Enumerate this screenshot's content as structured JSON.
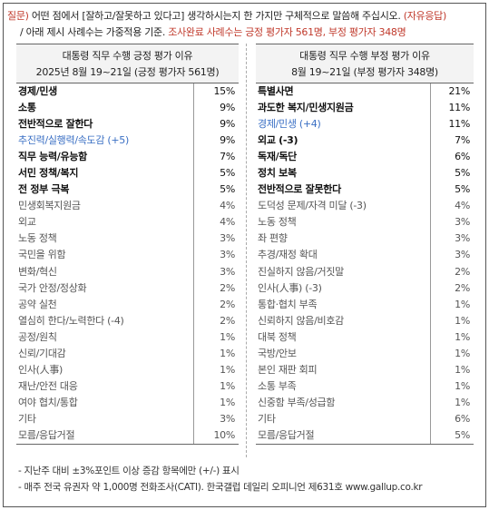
{
  "question": {
    "prefix": "질문)",
    "text1": " 어떤 점에서 [잘하고/잘못하고 있다고] 생각하시는지 한 가지만 구체적으로 말씀해 주십시오. ",
    "open_end": "(자유응답)",
    "text2": "/ 아래 제시 사례수는 가중적용 기준. ",
    "sample_note": "조사완료 사례수는 긍정 평가자 561명, 부정 평가자 348명"
  },
  "positive": {
    "title": "대통령 직무 수행 긍정 평가 이유",
    "subtitle": "2025년 8월 19~21일 (긍정 평가자 561명)",
    "rows": [
      {
        "label": "경제/민생",
        "value": "15%",
        "style": "bold"
      },
      {
        "label": "소통",
        "value": "9%",
        "style": "bold"
      },
      {
        "label": "전반적으로 잘한다",
        "value": "9%",
        "style": "bold"
      },
      {
        "label": "추진력/실행력/속도감 (+5)",
        "value": "9%",
        "style": "blue"
      },
      {
        "label": "직무 능력/유능함",
        "value": "7%",
        "style": "bold"
      },
      {
        "label": "서민 정책/복지",
        "value": "5%",
        "style": "bold"
      },
      {
        "label": "전 정부 극복",
        "value": "5%",
        "style": "bold"
      },
      {
        "label": "민생회복지원금",
        "value": "4%",
        "style": "normal"
      },
      {
        "label": "외교",
        "value": "4%",
        "style": "normal"
      },
      {
        "label": "노동 정책",
        "value": "3%",
        "style": "normal"
      },
      {
        "label": "국민을 위함",
        "value": "3%",
        "style": "normal"
      },
      {
        "label": "변화/혁신",
        "value": "3%",
        "style": "normal"
      },
      {
        "label": "국가 안정/정상화",
        "value": "2%",
        "style": "normal"
      },
      {
        "label": "공약 실천",
        "value": "2%",
        "style": "normal"
      },
      {
        "label": "열심히 한다/노력한다 (-4)",
        "value": "2%",
        "style": "normal"
      },
      {
        "label": "공정/원칙",
        "value": "1%",
        "style": "normal"
      },
      {
        "label": "신뢰/기대감",
        "value": "1%",
        "style": "normal"
      },
      {
        "label": "인사(人事)",
        "value": "1%",
        "style": "normal"
      },
      {
        "label": "재난/안전 대응",
        "value": "1%",
        "style": "normal"
      },
      {
        "label": "여야 협치/통합",
        "value": "1%",
        "style": "normal"
      },
      {
        "label": "기타",
        "value": "3%",
        "style": "normal"
      },
      {
        "label": "모름/응답거절",
        "value": "10%",
        "style": "normal"
      }
    ]
  },
  "negative": {
    "title": "대통령 직무 수행 부정 평가 이유",
    "subtitle": "8월 19~21일 (부정 평가자 348명)",
    "rows": [
      {
        "label": "특별사면",
        "value": "21%",
        "style": "bold"
      },
      {
        "label": "과도한 복지/민생지원금",
        "value": "11%",
        "style": "bold"
      },
      {
        "label": "경제/민생 (+4)",
        "value": "11%",
        "style": "blue"
      },
      {
        "label": "외교 (-3)",
        "value": "7%",
        "style": "bold"
      },
      {
        "label": "독재/독단",
        "value": "6%",
        "style": "bold"
      },
      {
        "label": "정치 보복",
        "value": "5%",
        "style": "bold"
      },
      {
        "label": "전반적으로 잘못한다",
        "value": "5%",
        "style": "bold"
      },
      {
        "label": "도덕성 문제/자격 미달 (-3)",
        "value": "4%",
        "style": "normal"
      },
      {
        "label": "노동 정책",
        "value": "3%",
        "style": "normal"
      },
      {
        "label": "좌 편향",
        "value": "3%",
        "style": "normal"
      },
      {
        "label": "추경/재정 확대",
        "value": "3%",
        "style": "normal"
      },
      {
        "label": "진실하지 않음/거짓말",
        "value": "2%",
        "style": "normal"
      },
      {
        "label": "인사(人事) (-3)",
        "value": "2%",
        "style": "normal"
      },
      {
        "label": "통합·협치 부족",
        "value": "1%",
        "style": "normal"
      },
      {
        "label": "신뢰하지 않음/비호감",
        "value": "1%",
        "style": "normal"
      },
      {
        "label": "대북 정책",
        "value": "1%",
        "style": "normal"
      },
      {
        "label": "국방/안보",
        "value": "1%",
        "style": "normal"
      },
      {
        "label": "본인 재판 회피",
        "value": "1%",
        "style": "normal"
      },
      {
        "label": "소통 부족",
        "value": "1%",
        "style": "normal"
      },
      {
        "label": "신중함 부족/성급함",
        "value": "1%",
        "style": "normal"
      },
      {
        "label": "기타",
        "value": "6%",
        "style": "normal"
      },
      {
        "label": "모름/응답거절",
        "value": "5%",
        "style": "normal"
      }
    ]
  },
  "notes": [
    "- 지난주 대비 ±3%포인트 이상 증감 항목에만 (+/-) 표시",
    "- 매주 전국 유권자 약 1,000명 전화조사(CATI). 한국갤럽 데일리 오피니언 제631호 www.gallup.co.kr"
  ]
}
